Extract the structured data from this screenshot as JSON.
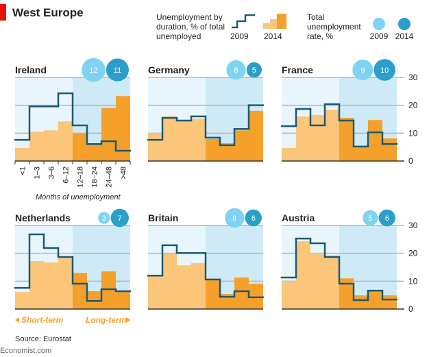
{
  "chart_data": {
    "type": "small-multiples-step",
    "title": "West Europe",
    "legend_title": "Unemployment by duration, % of total unemployed",
    "rate_legend_title": "Total unemployment rate, %",
    "x_label": "Months of unemployment",
    "categories": [
      "<1",
      "1–3",
      "3–6",
      "6–12",
      "12–18",
      "18–24",
      "24–48",
      ">48"
    ],
    "groups": [
      {
        "name": "Short-term",
        "background": "#e8f5fc",
        "bar_color": "#fbc57a"
      },
      {
        "name": "Long-term",
        "background": "#cfeaf7",
        "bar_color": "#f5a02a"
      }
    ],
    "ylim": [
      0,
      30
    ],
    "yticks": [
      0,
      10,
      20,
      30
    ],
    "grid": true,
    "series": [
      {
        "name": "2009",
        "color": "#1b5a72",
        "style": "step"
      },
      {
        "name": "2014",
        "color": "#f5a02a",
        "style": "bar"
      }
    ],
    "rate_series": [
      {
        "name": "2009",
        "color": "#7fd3f2"
      },
      {
        "name": "2014",
        "color": "#2a9fc9"
      }
    ],
    "panels": [
      {
        "title": "Ireland",
        "rates": [
          12,
          11
        ],
        "series": [
          {
            "values": [
              7.6,
              19.6,
              19.6,
              24.3,
              12.8,
              6.1,
              7.1,
              3.7
            ]
          },
          {
            "values": [
              4.7,
              10.5,
              11,
              14.2,
              9.8,
              6,
              19,
              23.3
            ]
          }
        ]
      },
      {
        "title": "Germany",
        "rates": [
          8,
          5
        ],
        "series": [
          {
            "values": [
              7.6,
              15.5,
              14.5,
              16,
              8.4,
              5.7,
              11.5,
              20
            ]
          },
          {
            "values": [
              10,
              16,
              14.7,
              15.2,
              7.9,
              6.4,
              11,
              18
            ]
          }
        ]
      },
      {
        "title": "France",
        "rates": [
          9,
          10
        ],
        "series": [
          {
            "values": [
              12.5,
              18.7,
              12.8,
              20.4,
              14.5,
              5.2,
              10.3,
              6.1
            ]
          },
          {
            "values": [
              4.7,
              16,
              16.5,
              18.4,
              15.5,
              5.4,
              14.7,
              8.1
            ]
          }
        ]
      },
      {
        "title": "Netherlands",
        "rates": [
          3,
          7
        ],
        "series": [
          {
            "values": [
              7.6,
              26.8,
              21.9,
              18.7,
              9.1,
              2.9,
              7.1,
              6.4
            ]
          },
          {
            "values": [
              6.1,
              17.2,
              16.7,
              18.4,
              13,
              6.4,
              13.5,
              6.6
            ]
          }
        ]
      },
      {
        "title": "Britain",
        "rates": [
          8,
          6
        ],
        "series": [
          {
            "values": [
              12,
              22.9,
              20.1,
              20.1,
              10.6,
              4.4,
              6.4,
              4.2
            ]
          },
          {
            "values": [
              12,
              19.9,
              15.7,
              16.5,
              10.8,
              5.4,
              11.3,
              9.1
            ]
          }
        ]
      },
      {
        "title": "Austria",
        "rates": [
          5,
          6
        ],
        "series": [
          {
            "values": [
              11.3,
              25.3,
              23.6,
              18.7,
              9.1,
              3.2,
              6.6,
              3.4
            ]
          },
          {
            "values": [
              10,
              24.3,
              20.1,
              19.2,
              11,
              4.9,
              6.4,
              4.9
            ]
          }
        ]
      }
    ],
    "source": "Source: Eurostat",
    "credit": "Economist.com"
  }
}
